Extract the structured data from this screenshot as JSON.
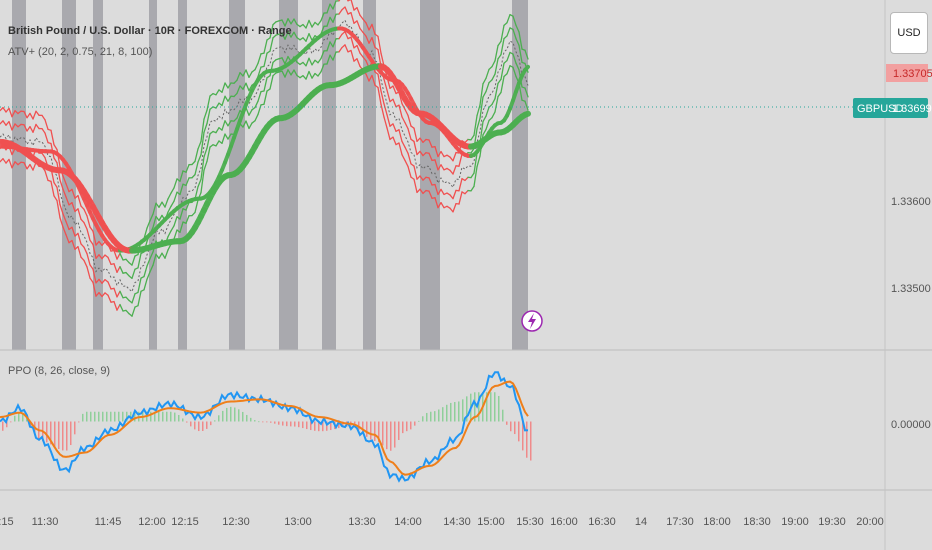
{
  "header": {
    "symbol_title": "British Pound / U.S. Dollar · 10R · FOREXCOM · Range",
    "indicator_atv": "ATV+ (20, 2, 0.75, 21, 8, 100)",
    "indicator_ppo": "PPO (8, 26, close, 9)"
  },
  "price_axis": {
    "currency": "USD",
    "ticks": [
      "1.33600",
      "1.33500"
    ],
    "last_price_label": "1.33705",
    "symbol_tag": "GBPUSD",
    "symbol_price": "1.33699"
  },
  "ppo_axis": {
    "ticks": [
      "0.00000"
    ]
  },
  "time_axis": {
    "labels": [
      ":15",
      "11:30",
      "11:45",
      "12:00",
      "12:15",
      "12:30",
      "13:00",
      "13:30",
      "14:00",
      "14:30",
      "15:00",
      "15:30",
      "16:00",
      "16:30",
      "14",
      "17:30",
      "18:00",
      "18:30",
      "19:00",
      "19:30",
      "20:00"
    ]
  },
  "colors": {
    "background": "#dcdcdc",
    "session_band": "#a9a9ae",
    "bull": "#4caf50",
    "bear": "#f05050",
    "ppo_line": "#2196f3",
    "signal_line": "#ef7f1a",
    "symbol_tag": "#26a69a",
    "last_price_bg": "#f2a0a0",
    "last_price_text": "#c62828"
  },
  "icons": {
    "lightning": "lightning-icon"
  },
  "chart_data": [
    {
      "type": "line",
      "panel": "price",
      "ylim": [
        1.3342,
        1.3379
      ],
      "grid": false,
      "series": [
        {
          "name": "price",
          "x": [
            0,
            40,
            75,
            100,
            130,
            160,
            190,
            215,
            250,
            280,
            310,
            345,
            370,
            395,
            420,
            450,
            470,
            490,
            510,
            530
          ],
          "values": [
            1.33645,
            1.3364,
            1.33555,
            1.33505,
            1.33485,
            1.33545,
            1.33585,
            1.33665,
            1.33685,
            1.3374,
            1.33735,
            1.33765,
            1.33735,
            1.33665,
            1.33615,
            1.33595,
            1.33615,
            1.3369,
            1.33745,
            1.337
          ]
        },
        {
          "name": "slow-ma",
          "x": [
            0,
            60,
            130,
            180,
            230,
            280,
            330,
            380,
            420,
            470,
            500,
            530
          ],
          "values": [
            1.3364,
            1.3361,
            1.33525,
            1.33535,
            1.33605,
            1.33665,
            1.337,
            1.3372,
            1.3367,
            1.33635,
            1.3365,
            1.3367
          ]
        },
        {
          "name": "mid-ma",
          "x": [
            0,
            50,
            120,
            200,
            270,
            340,
            395,
            430,
            470,
            500,
            530
          ],
          "values": [
            1.33635,
            1.3363,
            1.33525,
            1.3358,
            1.33715,
            1.3376,
            1.33705,
            1.3366,
            1.33625,
            1.3366,
            1.3372
          ]
        }
      ],
      "session_bands_x": [
        [
          12,
          26
        ],
        [
          62,
          76
        ],
        [
          93,
          103
        ],
        [
          149,
          157
        ],
        [
          178,
          187
        ],
        [
          229,
          245
        ],
        [
          279,
          298
        ],
        [
          322,
          336
        ],
        [
          363,
          376
        ],
        [
          420,
          440
        ],
        [
          512,
          528
        ]
      ]
    },
    {
      "type": "line",
      "panel": "ppo",
      "ylim": [
        -0.0003,
        0.0003
      ],
      "series": [
        {
          "name": "ppo",
          "x": [
            0,
            20,
            40,
            65,
            85,
            110,
            140,
            170,
            200,
            230,
            260,
            290,
            320,
            350,
            375,
            390,
            405,
            430,
            455,
            475,
            495,
            510,
            530
          ],
          "values": [
            0.0,
            6e-05,
            -8e-05,
            -0.00022,
            -0.00012,
            -4e-05,
            4e-05,
            8e-05,
            2e-05,
            0.00012,
            0.0001,
            6e-05,
            0.0,
            -2e-05,
            -0.0001,
            -0.00024,
            -0.00026,
            -0.00018,
            -8e-05,
            8e-05,
            0.00022,
            0.00016,
            -6e-05
          ]
        },
        {
          "name": "signal",
          "x": [
            0,
            20,
            40,
            65,
            85,
            110,
            140,
            170,
            200,
            230,
            260,
            290,
            320,
            350,
            375,
            390,
            405,
            430,
            455,
            475,
            495,
            510,
            530
          ],
          "values": [
            2e-05,
            4e-05,
            -4e-05,
            -0.00016,
            -0.00014,
            -6e-05,
            2e-05,
            6e-05,
            4e-05,
            9e-05,
            0.0001,
            7e-05,
            2e-05,
            -1e-05,
            -6e-05,
            -0.00018,
            -0.00024,
            -0.0002,
            -0.00012,
            2e-05,
            0.00016,
            0.00018,
            2e-05
          ]
        }
      ]
    }
  ]
}
